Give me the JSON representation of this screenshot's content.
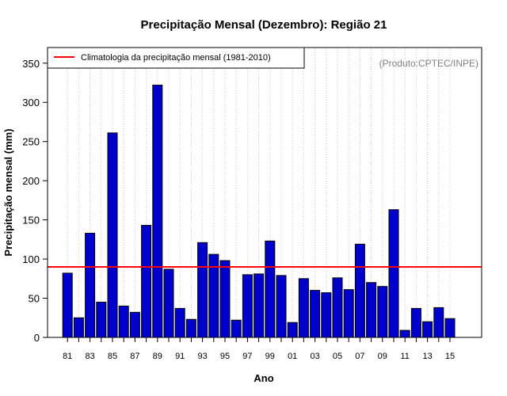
{
  "chart_data": {
    "type": "bar",
    "title": "Precipitação Mensal (Dezembro): Região 21",
    "xlabel": "Ano",
    "ylabel": "Precipitação mensal (mm)",
    "ylim": [
      0,
      370
    ],
    "yticks": [
      0,
      50,
      100,
      150,
      200,
      250,
      300,
      350
    ],
    "categories": [
      "81",
      "82",
      "83",
      "84",
      "85",
      "86",
      "87",
      "88",
      "89",
      "90",
      "91",
      "92",
      "93",
      "94",
      "95",
      "96",
      "97",
      "98",
      "99",
      "00",
      "01",
      "02",
      "03",
      "04",
      "05",
      "06",
      "07",
      "08",
      "09",
      "10",
      "11",
      "12",
      "13",
      "14",
      "15"
    ],
    "values": [
      82,
      25,
      133,
      45,
      261,
      40,
      32,
      143,
      322,
      87,
      37,
      23,
      121,
      106,
      98,
      22,
      80,
      81,
      123,
      79,
      19,
      75,
      60,
      57,
      76,
      61,
      119,
      70,
      65,
      163,
      9,
      37,
      20,
      38,
      24
    ],
    "xtick_labels_shown": [
      "81",
      "83",
      "85",
      "87",
      "89",
      "91",
      "93",
      "95",
      "97",
      "99",
      "01",
      "03",
      "05",
      "07",
      "09",
      "11",
      "13",
      "15"
    ],
    "climatology": {
      "label": "Climatologia da precipitação mensal (1981-2010)",
      "value": 90,
      "color": "#ff0000"
    },
    "bar_color": "#0000cc",
    "grid": "vertical dotted",
    "legend_position": "top-left",
    "credit": "(Produto:CPTEC/INPE)"
  }
}
